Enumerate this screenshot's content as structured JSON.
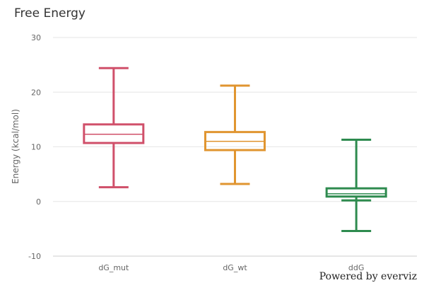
{
  "chart_data": {
    "type": "boxplot",
    "title": "Free Energy",
    "xlabel": "",
    "ylabel": "Energy  (kcal/mol)",
    "ylim": [
      -10,
      30
    ],
    "yticks": [
      -10,
      0,
      10,
      20,
      30
    ],
    "grid": true,
    "legend": "none",
    "categories": [
      "dG_mut",
      "dG_wt",
      "ddG"
    ],
    "series": [
      {
        "category": "dG_mut",
        "low": 2.6,
        "q1": 10.7,
        "median": 12.3,
        "q3": 14.1,
        "high": 24.4,
        "color": "#d0506a"
      },
      {
        "category": "dG_wt",
        "low": 3.2,
        "q1": 9.4,
        "median": 11.0,
        "q3": 12.7,
        "high": 21.2,
        "color": "#e09530"
      },
      {
        "category": "ddG",
        "low": -5.4,
        "q1": 0.9,
        "median": 1.4,
        "q3": 2.4,
        "high": 11.3,
        "whisker_low_mark": 0.2,
        "color": "#2e8b4f"
      }
    ]
  },
  "credit": "Powered by everviz"
}
